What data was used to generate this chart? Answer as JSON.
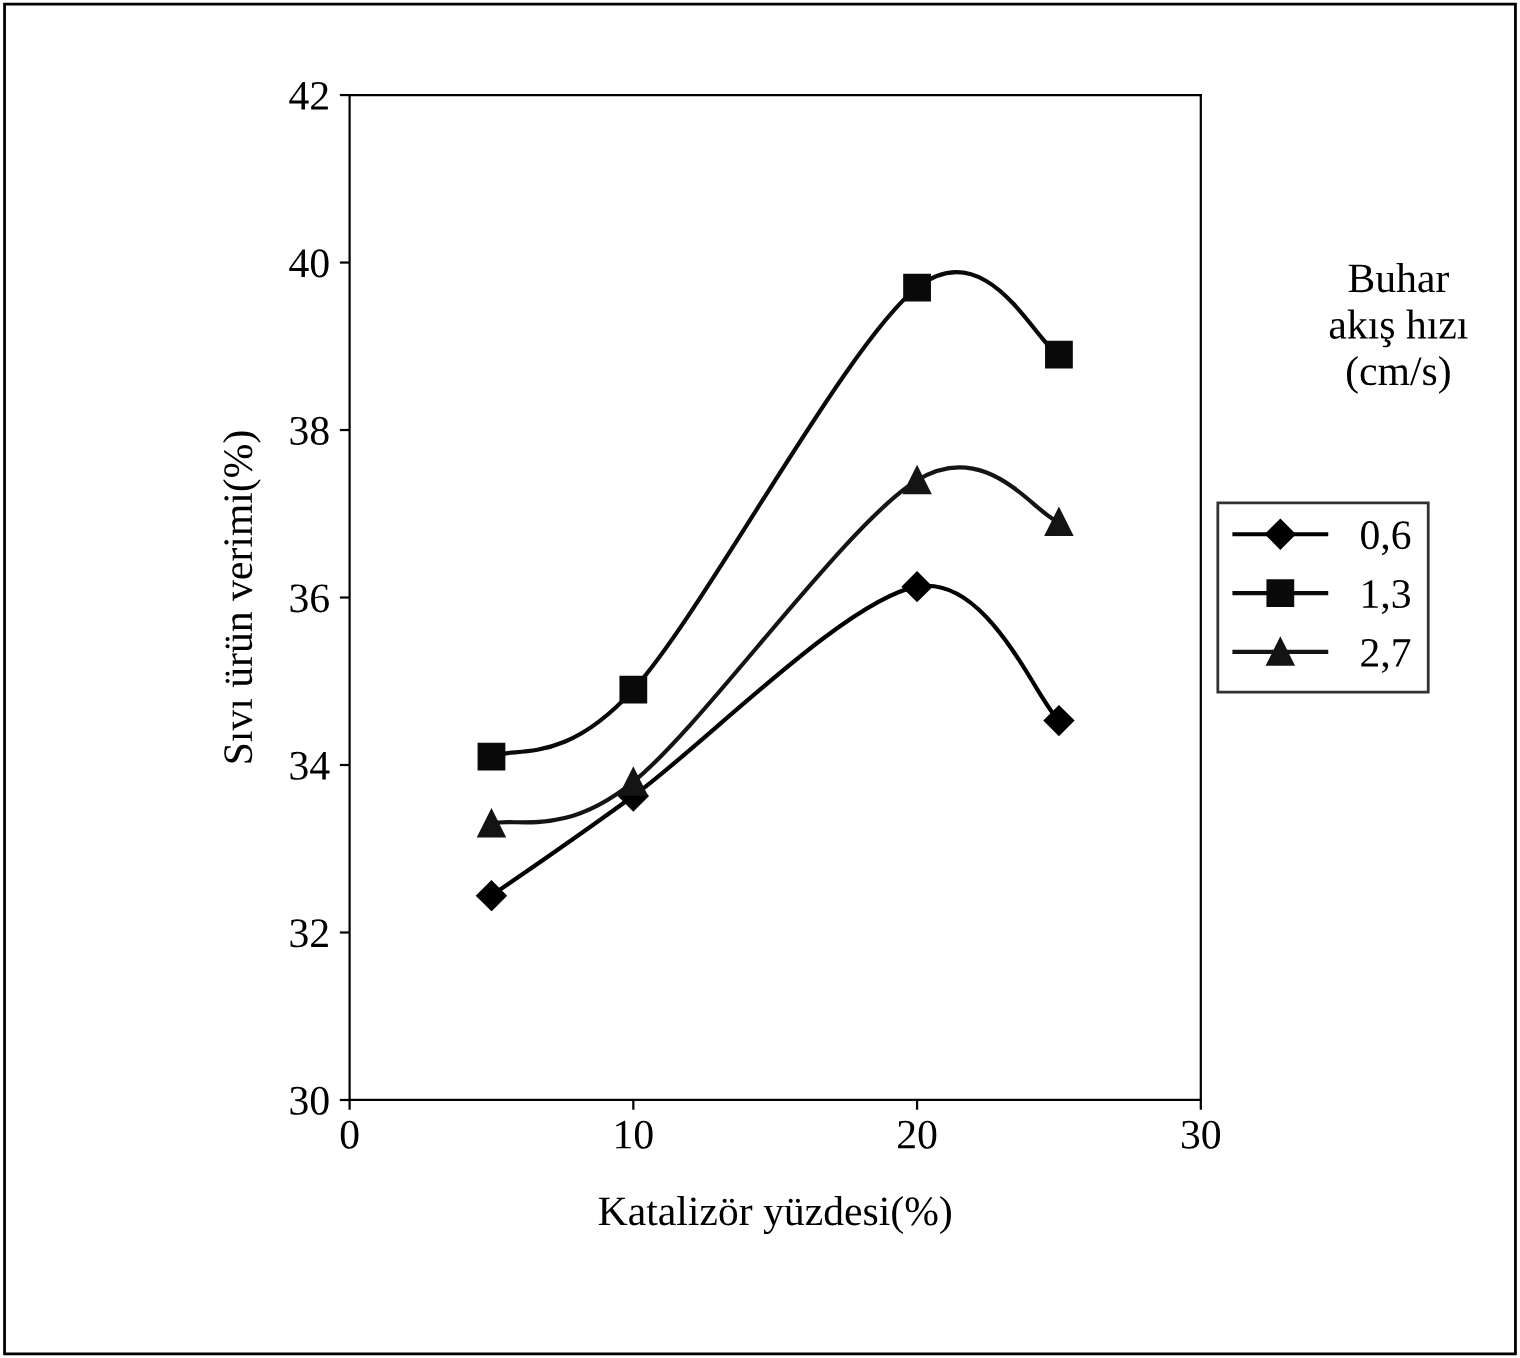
{
  "chart_data": {
    "type": "line",
    "xlabel": "Katalizör yüzdesi(%)",
    "ylabel": "Sıvı ürün verimi(%)",
    "legend_title": "Buhar\nakış hızı\n(cm/s)",
    "x": [
      5,
      10,
      20,
      25
    ],
    "series": [
      {
        "name": "0,6",
        "color": "#000000",
        "marker": "diamond",
        "values": [
          32.44,
          33.63,
          36.13,
          34.53
        ]
      },
      {
        "name": "1,3",
        "color": "#0a0a0a",
        "marker": "square",
        "values": [
          34.1,
          34.9,
          39.7,
          38.9
        ]
      },
      {
        "name": "2,7",
        "color": "#141414",
        "marker": "triangle",
        "values": [
          33.3,
          33.8,
          37.4,
          36.9
        ]
      }
    ],
    "xlim": [
      0,
      30
    ],
    "xticks": [
      0,
      10,
      20,
      30
    ],
    "ylim": [
      30,
      42
    ],
    "yticks": [
      30,
      32,
      34,
      36,
      38,
      40,
      42
    ],
    "grid": false,
    "legend": "right",
    "line_style": "solid"
  }
}
